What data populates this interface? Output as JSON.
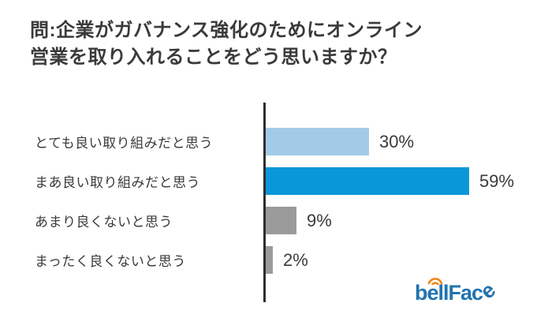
{
  "title": {
    "line1": "問:企業がガバナンス強化のためにオンライン",
    "line2": "営業を取り入れることをどう思いますか？",
    "full": "問:企業がガバナンス強化のためにオンライン営業を取り入れることをどう思いますか？"
  },
  "chart_data": {
    "type": "bar",
    "orientation": "horizontal",
    "title": "問:企業がガバナンス強化のためにオンライン営業を取り入れることをどう思いますか？",
    "unit": "%",
    "categories": [
      "とても良い取り組みだと思う",
      "まあ良い取り組みだと思う",
      "あまり良くないと思う",
      "まったく良くないと思う"
    ],
    "values": [
      30,
      59,
      9,
      2
    ],
    "value_labels": [
      "30%",
      "59%",
      "9%",
      "2%"
    ],
    "bar_colors": [
      "#a2cbe8",
      "#0997d9",
      "#9b9b9b",
      "#9b9b9b"
    ],
    "grid": false,
    "legend": false,
    "axis_color": "#2d2d2d"
  },
  "logo": {
    "text": "bellFace",
    "segments": {
      "b": "b",
      "e1": "e",
      "mid": "llFac",
      "e2": "e"
    },
    "wifi_icon": "wifi-arcs-icon",
    "brand_blue": "#2173ae",
    "brand_orange": "#f08414"
  },
  "colors": {
    "background": "#ffffff",
    "text": "#3a3a3a",
    "axis": "#2d2d2d",
    "bar_strong": "#0997d9",
    "bar_light": "#a2cbe8",
    "bar_gray": "#9b9b9b"
  }
}
